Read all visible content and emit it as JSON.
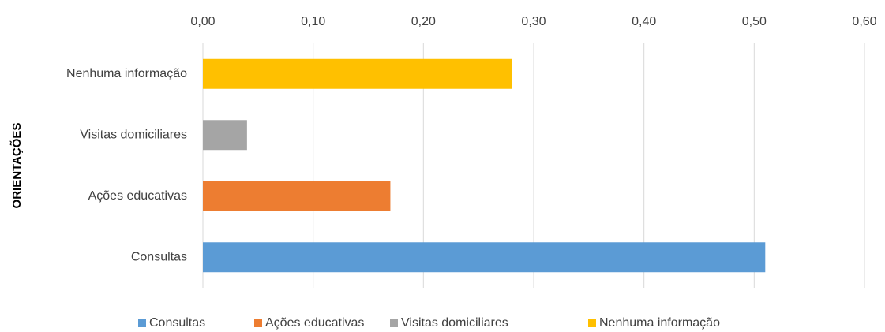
{
  "chart_data": {
    "type": "barh",
    "y_label": "ORIENTAÇÕES",
    "categories": [
      "Consultas",
      "Ações educativas",
      "Visitas domiciliares",
      "Nenhuma informação"
    ],
    "series": [
      {
        "name": "Consultas",
        "color": "#5b9bd5",
        "values": [
          0.51,
          null,
          null,
          null
        ]
      },
      {
        "name": "Ações educativas",
        "color": "#ed7d31",
        "values": [
          null,
          0.17,
          null,
          null
        ]
      },
      {
        "name": "Visitas domiciliares",
        "color": "#a5a5a5",
        "values": [
          null,
          null,
          0.04,
          null
        ]
      },
      {
        "name": "Nenhuma informação",
        "color": "#ffc000",
        "values": [
          null,
          null,
          null,
          0.28
        ]
      }
    ],
    "xlim": [
      0,
      0.6
    ],
    "xticks": [
      {
        "value": 0,
        "label": "0,00"
      },
      {
        "value": 0.1,
        "label": "0,10"
      },
      {
        "value": 0.2,
        "label": "0,20"
      },
      {
        "value": 0.3,
        "label": "0,30"
      },
      {
        "value": 0.4,
        "label": "0,40"
      },
      {
        "value": 0.5,
        "label": "0,50"
      },
      {
        "value": 0.6,
        "label": "0,60"
      }
    ],
    "grid": true,
    "legend": "bottom"
  }
}
